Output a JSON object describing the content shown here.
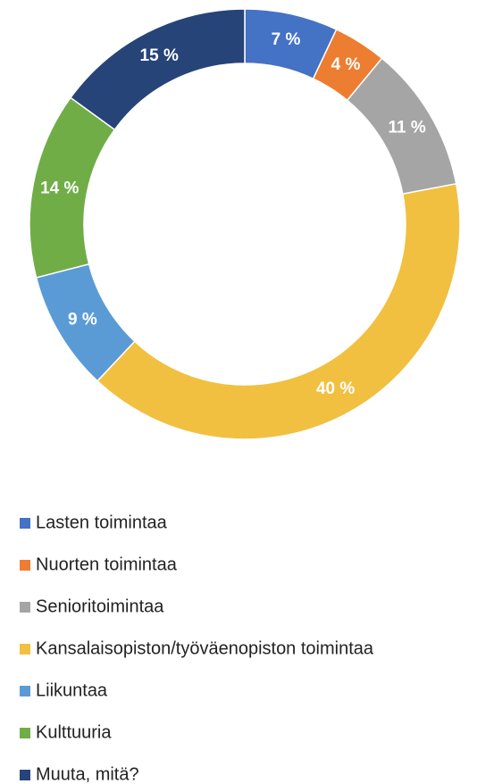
{
  "chart_data": {
    "type": "donut",
    "categories": [
      "Lasten toimintaa",
      "Nuorten toimintaa",
      "Senioritoimintaa",
      "Kansalaisopiston/työväenopiston toimintaa",
      "Liikuntaa",
      "Kulttuuria",
      "Muuta, mitä?"
    ],
    "values": [
      7,
      4,
      11,
      40,
      9,
      14,
      15
    ],
    "value_labels": [
      "7 %",
      "4 %",
      "11 %",
      "40 %",
      "9 %",
      "14 %",
      "15 %"
    ],
    "colors": [
      "#4472c4",
      "#ed7d31",
      "#a5a5a5",
      "#f2c040",
      "#5b9bd5",
      "#70ad47",
      "#264478"
    ]
  }
}
